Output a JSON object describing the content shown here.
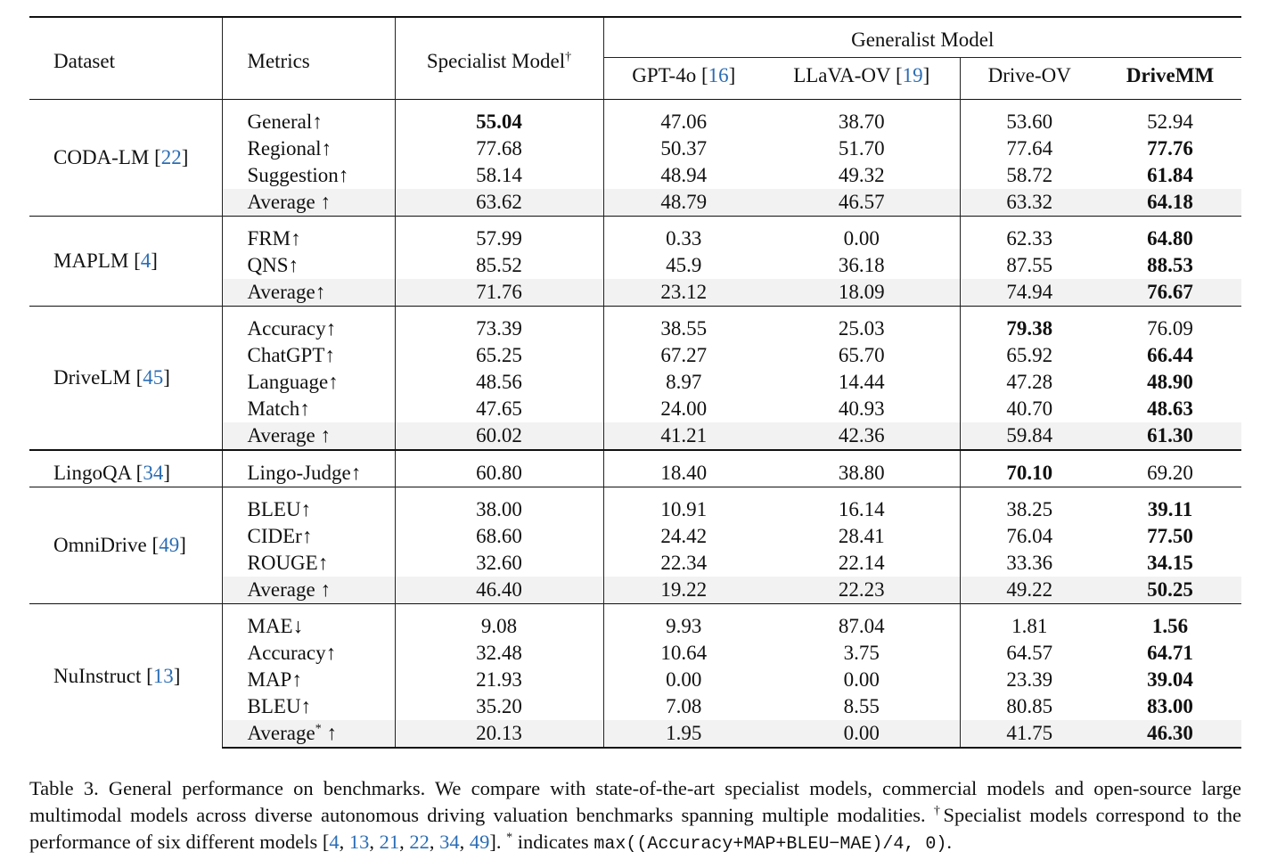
{
  "header": {
    "dataset": "Dataset",
    "metrics": "Metrics",
    "specialist": "Specialist Model",
    "specialist_mark": "†",
    "generalist": "Generalist Model",
    "gpt4o": "GPT-4o",
    "gpt4o_ref": "16",
    "llava": "LLaVA-OV",
    "llava_ref": "19",
    "driveov": "Drive-OV",
    "drivemm": "DriveMM"
  },
  "rows": {
    "coda": {
      "name": "CODA-LM",
      "ref": "22",
      "r0": {
        "metric": "General↑",
        "spec": "55.04",
        "gpt": "47.06",
        "llava": "38.70",
        "dov": "53.60",
        "dmm": "52.94"
      },
      "r1": {
        "metric": "Regional↑",
        "spec": "77.68",
        "gpt": "50.37",
        "llava": "51.70",
        "dov": "77.64",
        "dmm": "77.76"
      },
      "r2": {
        "metric": "Suggestion↑",
        "spec": "58.14",
        "gpt": "48.94",
        "llava": "49.32",
        "dov": "58.72",
        "dmm": "61.84"
      },
      "r3": {
        "metric": "Average ↑",
        "spec": "63.62",
        "gpt": "48.79",
        "llava": "46.57",
        "dov": "63.32",
        "dmm": "64.18"
      }
    },
    "maplm": {
      "name": "MAPLM",
      "ref": "4",
      "r0": {
        "metric": "FRM↑",
        "spec": "57.99",
        "gpt": "0.33",
        "llava": "0.00",
        "dov": "62.33",
        "dmm": "64.80"
      },
      "r1": {
        "metric": "QNS↑",
        "spec": "85.52",
        "gpt": "45.9",
        "llava": "36.18",
        "dov": "87.55",
        "dmm": "88.53"
      },
      "r2": {
        "metric": "Average↑",
        "spec": "71.76",
        "gpt": "23.12",
        "llava": "18.09",
        "dov": "74.94",
        "dmm": "76.67"
      }
    },
    "drivelm": {
      "name": "DriveLM",
      "ref": "45",
      "r0": {
        "metric": "Accuracy↑",
        "spec": "73.39",
        "gpt": "38.55",
        "llava": "25.03",
        "dov": "79.38",
        "dmm": "76.09"
      },
      "r1": {
        "metric": "ChatGPT↑",
        "spec": "65.25",
        "gpt": "67.27",
        "llava": "65.70",
        "dov": "65.92",
        "dmm": "66.44"
      },
      "r2": {
        "metric": "Language↑",
        "spec": "48.56",
        "gpt": "8.97",
        "llava": "14.44",
        "dov": "47.28",
        "dmm": "48.90"
      },
      "r3": {
        "metric": "Match↑",
        "spec": "47.65",
        "gpt": "24.00",
        "llava": "40.93",
        "dov": "40.70",
        "dmm": "48.63"
      },
      "r4": {
        "metric": "Average ↑",
        "spec": "60.02",
        "gpt": "41.21",
        "llava": "42.36",
        "dov": "59.84",
        "dmm": "61.30"
      }
    },
    "lingoqa": {
      "name": "LingoQA",
      "ref": "34",
      "r0": {
        "metric": "Lingo-Judge↑",
        "spec": "60.80",
        "gpt": "18.40",
        "llava": "38.80",
        "dov": "70.10",
        "dmm": "69.20"
      }
    },
    "omnidrive": {
      "name": "OmniDrive",
      "ref": "49",
      "r0": {
        "metric": "BLEU↑",
        "spec": "38.00",
        "gpt": "10.91",
        "llava": "16.14",
        "dov": "38.25",
        "dmm": "39.11"
      },
      "r1": {
        "metric": "CIDEr↑",
        "spec": "68.60",
        "gpt": "24.42",
        "llava": "28.41",
        "dov": "76.04",
        "dmm": "77.50"
      },
      "r2": {
        "metric": "ROUGE↑",
        "spec": "32.60",
        "gpt": "22.34",
        "llava": "22.14",
        "dov": "33.36",
        "dmm": "34.15"
      },
      "r3": {
        "metric": "Average ↑",
        "spec": "46.40",
        "gpt": "19.22",
        "llava": "22.23",
        "dov": "49.22",
        "dmm": "50.25"
      }
    },
    "nuinstruct": {
      "name": "NuInstruct",
      "ref": "13",
      "r0": {
        "metric": "MAE↓",
        "spec": "9.08",
        "gpt": "9.93",
        "llava": "87.04",
        "dov": "1.81",
        "dmm": "1.56"
      },
      "r1": {
        "metric": "Accuracy↑",
        "spec": "32.48",
        "gpt": "10.64",
        "llava": "3.75",
        "dov": "64.57",
        "dmm": "64.71"
      },
      "r2": {
        "metric": "MAP↑",
        "spec": "21.93",
        "gpt": "0.00",
        "llava": "0.00",
        "dov": "23.39",
        "dmm": "39.04"
      },
      "r3": {
        "metric": "BLEU↑",
        "spec": "35.20",
        "gpt": "7.08",
        "llava": "8.55",
        "dov": "80.85",
        "dmm": "83.00"
      },
      "r4": {
        "metric": "Average",
        "metric_mark": "*",
        "metric_arrow": " ↑",
        "spec": "20.13",
        "gpt": "1.95",
        "llava": "0.00",
        "dov": "41.75",
        "dmm": "46.30"
      }
    }
  },
  "caption": {
    "lead": "Table 3. General performance on benchmarks. We compare with state-of-the-art specialist models, commercial models and open-source large multimodal models across diverse autonomous driving valuation benchmarks spanning multiple modalities. ",
    "dagger": "†",
    "specialist_note": "Specialist models correspond to the performance of six different models [",
    "refs": [
      "4",
      "13",
      "21",
      "22",
      "34",
      "49"
    ],
    "refs_close": "]. ",
    "star": "*",
    "indicates": " indicates ",
    "formula": "max((Accuracy+MAP+BLEU−MAE)/4, 0)",
    "end": "."
  }
}
